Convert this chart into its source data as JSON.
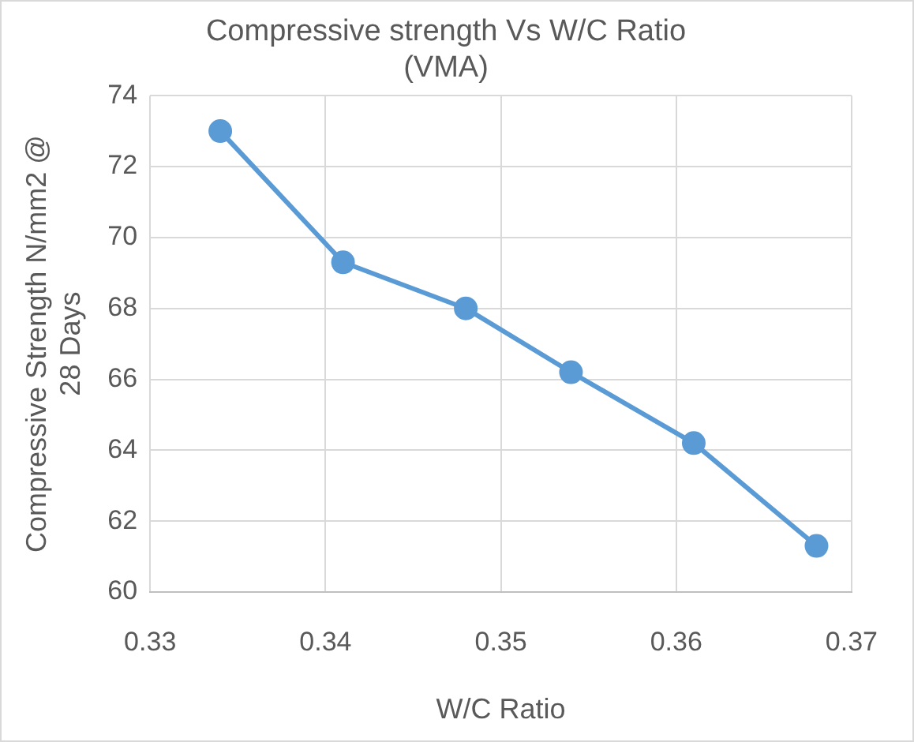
{
  "chart_data": {
    "type": "line",
    "title": [
      "Compressive strength Vs W/C Ratio",
      "(VMA)"
    ],
    "xlabel": "W/C Ratio",
    "ylabel": [
      "Compressive Strength N/mm2 @",
      "28 Days"
    ],
    "x": [
      0.334,
      0.341,
      0.348,
      0.354,
      0.361,
      0.368
    ],
    "series": [
      {
        "color": "#5b9bd5",
        "values": [
          73.0,
          69.3,
          68.0,
          66.2,
          64.2,
          61.3
        ]
      }
    ],
    "xlim": [
      0.33,
      0.37
    ],
    "xticks": [
      0.33,
      0.34,
      0.35,
      0.36,
      0.37
    ],
    "ylim": [
      60,
      74
    ],
    "yticks": [
      60,
      62,
      64,
      66,
      68,
      70,
      72,
      74
    ],
    "grid": true,
    "legend": false,
    "marker": "circle",
    "line_style": "solid"
  }
}
